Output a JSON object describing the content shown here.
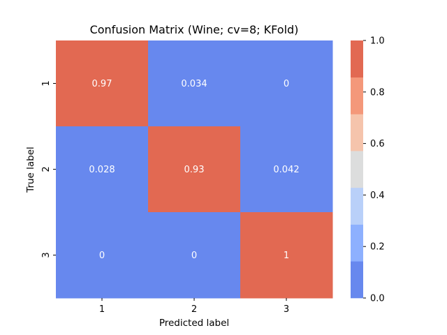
{
  "chart_data": {
    "type": "heatmap",
    "title": "Confusion Matrix (Wine; cv=8; KFold)",
    "xlabel": "Predicted label",
    "ylabel": "True label",
    "x_categories": [
      "1",
      "2",
      "3"
    ],
    "y_categories": [
      "1",
      "2",
      "3"
    ],
    "values": [
      [
        0.97,
        0.034,
        0
      ],
      [
        0.028,
        0.93,
        0.042
      ],
      [
        0,
        0,
        1
      ]
    ],
    "cell_labels": [
      [
        "0.97",
        "0.034",
        "0"
      ],
      [
        "0.028",
        "0.93",
        "0.042"
      ],
      [
        "0",
        "0",
        "1"
      ]
    ],
    "colorbar": {
      "vmin": 0,
      "vmax": 1,
      "ticks": [
        "0.0",
        "0.2",
        "0.4",
        "0.6",
        "0.8",
        "1.0"
      ],
      "bins": [
        {
          "from": 0,
          "to": 0.142857,
          "color": "#6788ee"
        },
        {
          "from": 0.142857,
          "to": 0.285714,
          "color": "#8db0fe"
        },
        {
          "from": 0.285714,
          "to": 0.428571,
          "color": "#b9d0f9"
        },
        {
          "from": 0.428571,
          "to": 0.571429,
          "color": "#dcdddd"
        },
        {
          "from": 0.571429,
          "to": 0.714286,
          "color": "#f5c4ac"
        },
        {
          "from": 0.714286,
          "to": 0.857143,
          "color": "#f4987a"
        },
        {
          "from": 0.857143,
          "to": 1.0,
          "color": "#e26952"
        }
      ]
    },
    "annotation_color": "#ffffff",
    "grid": false
  }
}
